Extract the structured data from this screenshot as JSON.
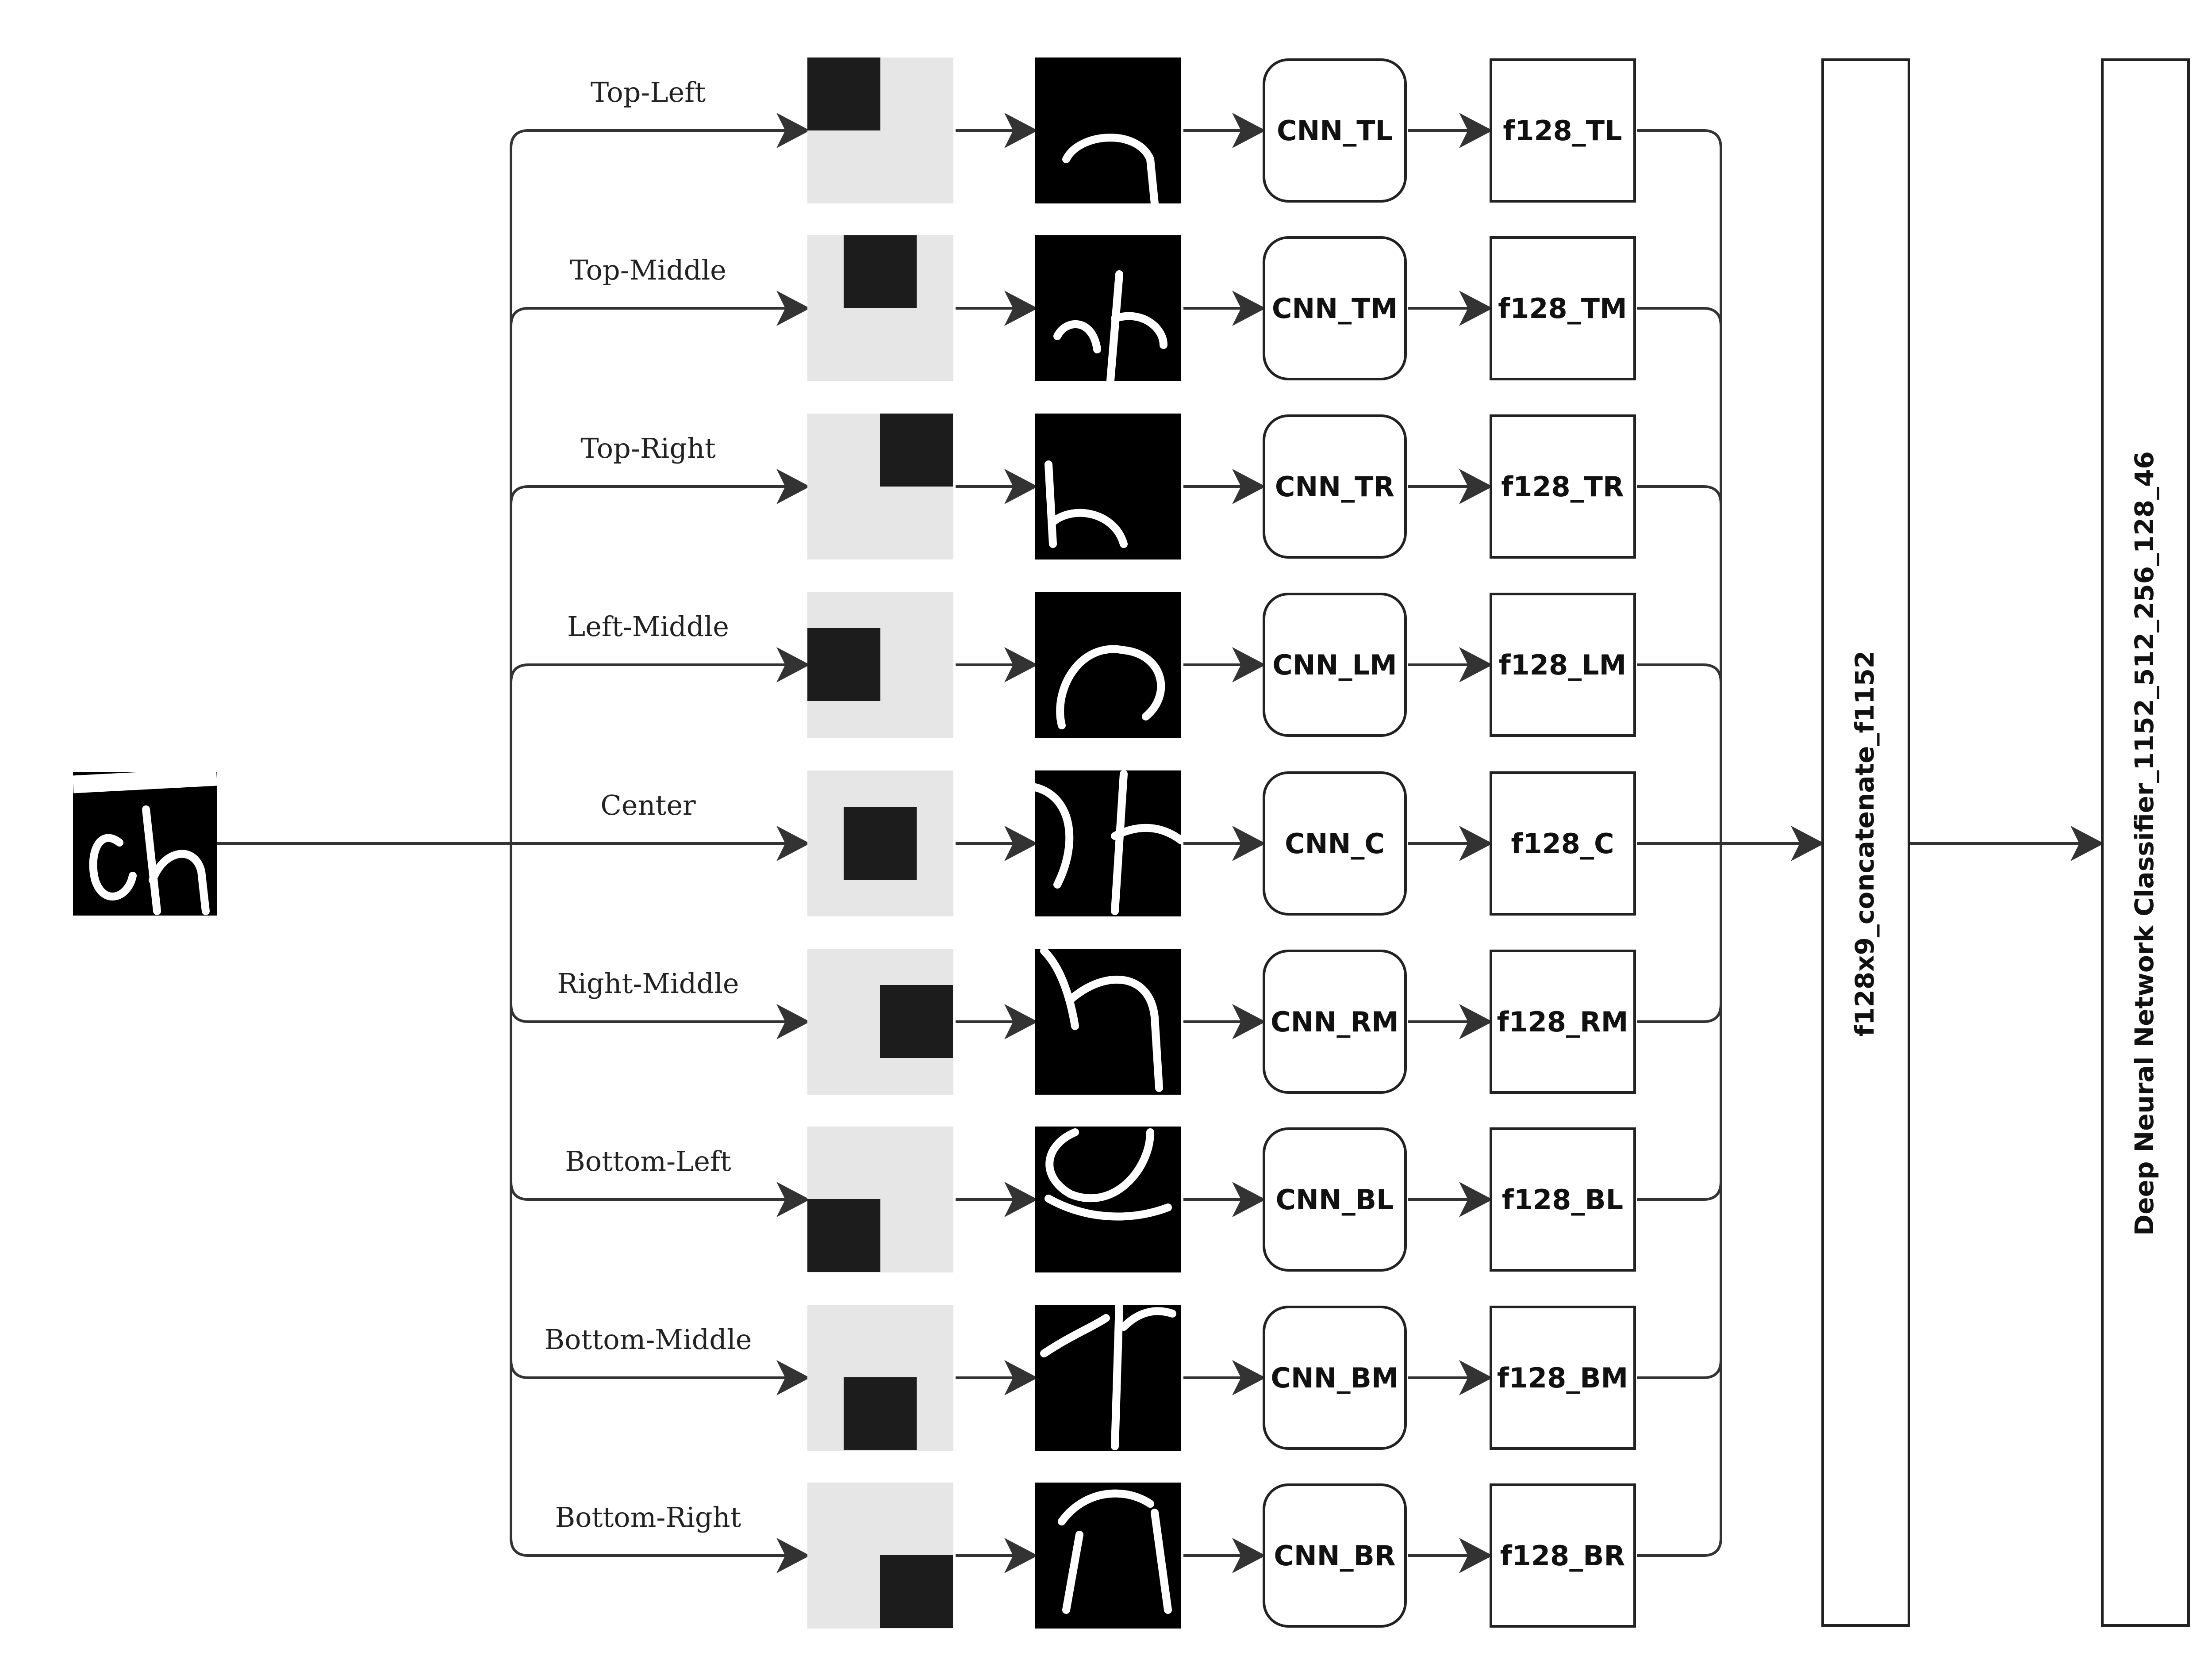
{
  "input": {
    "icon": "handwritten-character-image"
  },
  "branches": [
    {
      "position": "Top-Left",
      "cnn": "CNN_TL",
      "feature": "f128_TL"
    },
    {
      "position": "Top-Middle",
      "cnn": "CNN_TM",
      "feature": "f128_TM"
    },
    {
      "position": "Top-Right",
      "cnn": "CNN_TR",
      "feature": "f128_TR"
    },
    {
      "position": "Left-Middle",
      "cnn": "CNN_LM",
      "feature": "f128_LM"
    },
    {
      "position": "Center",
      "cnn": "CNN_C",
      "feature": "f128_C"
    },
    {
      "position": "Right-Middle",
      "cnn": "CNN_RM",
      "feature": "f128_RM"
    },
    {
      "position": "Bottom-Left",
      "cnn": "CNN_BL",
      "feature": "f128_BL"
    },
    {
      "position": "Bottom-Middle",
      "cnn": "CNN_BM",
      "feature": "f128_BM"
    },
    {
      "position": "Bottom-Right",
      "cnn": "CNN_BR",
      "feature": "f128_BR"
    }
  ],
  "concatenate": {
    "label": "f128x9_concatenate_f1152"
  },
  "classifier": {
    "label": "Deep Neural Network Classifier_1152_512_256_128_46"
  },
  "colors": {
    "crop_background": "#e6e6e6",
    "crop_region": "#1c1c1c",
    "stroke": "#333333"
  }
}
